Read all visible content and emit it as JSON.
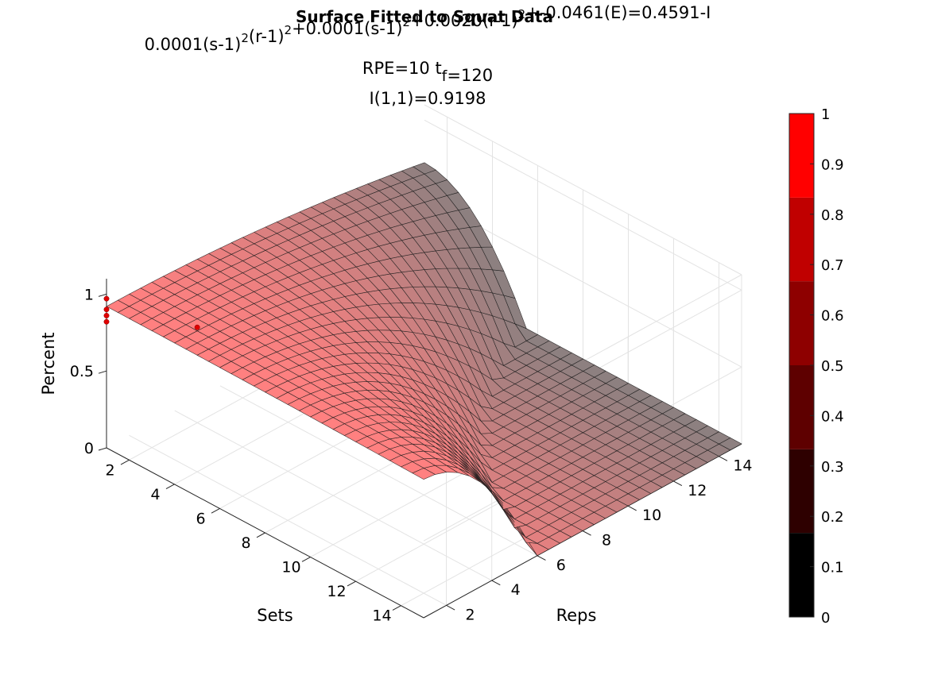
{
  "chart_data": {
    "type": "surface",
    "title": "Surface Fitted to Squat Data",
    "subtitle_lines": [
      {
        "segments": [
          {
            "t": "0.0001(s-1)"
          },
          {
            "t": "2",
            "sup": true
          },
          {
            "t": "(r-1)"
          },
          {
            "t": "2",
            "sup": true
          },
          {
            "t": "+0.0001(s-1)"
          },
          {
            "t": "2",
            "sup": true
          },
          {
            "t": "+0.0020(r-1)"
          },
          {
            "t": "2",
            "sup": true
          },
          {
            "t": "+-0.0461(E)=0.4591-I"
          }
        ]
      },
      {
        "segments": [
          {
            "t": "RPE=10  t"
          },
          {
            "t": "f",
            "sub": true
          },
          {
            "t": "=120"
          }
        ]
      },
      {
        "segments": [
          {
            "t": "I(1,1)=0.9198"
          }
        ]
      }
    ],
    "xlabel": "Sets",
    "ylabel": "Reps",
    "zlabel": "Percent",
    "x_range": [
      1,
      15
    ],
    "y_range": [
      1,
      15
    ],
    "z_range": [
      0,
      1.1
    ],
    "x_ticks": [
      2,
      4,
      6,
      8,
      10,
      12,
      14
    ],
    "y_ticks": [
      2,
      4,
      6,
      8,
      10,
      12,
      14
    ],
    "z_ticks": [
      0,
      0.5,
      1
    ],
    "grid": true,
    "model": {
      "intercept": 0.4591,
      "coef_sr": 0.0001,
      "coef_s": 0.0001,
      "coef_r": 0.002,
      "coef_E": -0.0461,
      "RPE": 10,
      "tf": 120,
      "I_1_1": 0.9198
    },
    "mesh": {
      "s_steps": 28,
      "r_steps": 28
    },
    "data_points": [
      {
        "s": 1,
        "r": 1,
        "z": 0.97
      },
      {
        "s": 1,
        "r": 1,
        "z": 0.9
      },
      {
        "s": 1,
        "r": 1,
        "z": 0.86
      },
      {
        "s": 1,
        "r": 1,
        "z": 0.82
      },
      {
        "s": 3,
        "r": 3,
        "z": 0.78
      }
    ],
    "point_color": "#e00000",
    "colormap": {
      "ticks": [
        0,
        0.1,
        0.2,
        0.3,
        0.4,
        0.5,
        0.6,
        0.7,
        0.8,
        0.9,
        1
      ],
      "bands": [
        {
          "from": 0.0,
          "to": 0.167,
          "color": "#000000"
        },
        {
          "from": 0.167,
          "to": 0.333,
          "color": "#2e0000"
        },
        {
          "from": 0.333,
          "to": 0.5,
          "color": "#5e0000"
        },
        {
          "from": 0.5,
          "to": 0.667,
          "color": "#8e0000"
        },
        {
          "from": 0.667,
          "to": 0.833,
          "color": "#c00000"
        },
        {
          "from": 0.833,
          "to": 1.0,
          "color": "#ff0000"
        }
      ]
    },
    "surface_colors": {
      "light": "#ff8080",
      "dark": "#808080"
    }
  }
}
